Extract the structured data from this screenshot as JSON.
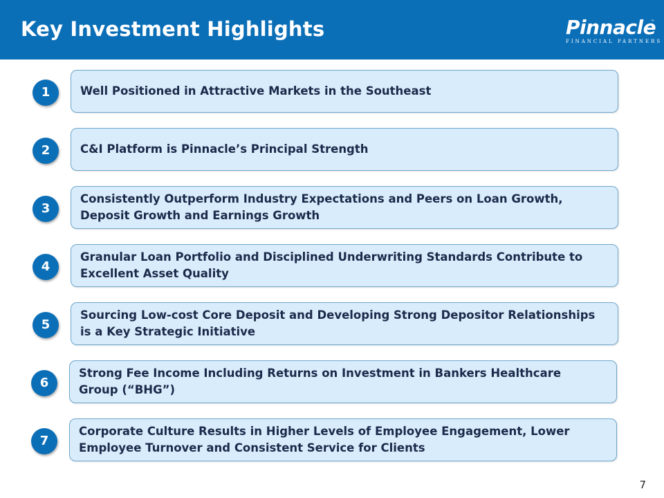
{
  "slide": {
    "title": "Key Investment Highlights",
    "page_number": "7"
  },
  "logo": {
    "wordmark": "Pinnacle",
    "tagline": "FINANCIAL PARTNERS",
    "trademark": "™"
  },
  "highlights": [
    {
      "number": "1",
      "text": "Well Positioned in Attractive Markets in the Southeast"
    },
    {
      "number": "2",
      "text": "C&I Platform is Pinnacle’s Principal Strength"
    },
    {
      "number": "3",
      "text": "Consistently Outperform Industry Expectations and Peers on Loan Growth, Deposit Growth and Earnings Growth"
    },
    {
      "number": "4",
      "text": "Granular Loan Portfolio and Disciplined Underwriting Standards Contribute to Excellent Asset Quality"
    },
    {
      "number": "5",
      "text": "Sourcing Low-cost Core Deposit and Developing Strong Depositor Relationships is a Key Strategic Initiative"
    },
    {
      "number": "6",
      "text": "Strong Fee Income Including Returns on Investment in Bankers Healthcare Group (“BHG”)"
    },
    {
      "number": "7",
      "text": "Corporate Culture Results in Higher Levels of Employee Engagement, Lower Employee Turnover and Consistent Service for Clients"
    }
  ],
  "colors": {
    "header_blue": "#0b6fb8",
    "box_fill": "#d9ecfb",
    "box_border": "#6ea6cc",
    "text_dark": "#1a2a4a"
  }
}
